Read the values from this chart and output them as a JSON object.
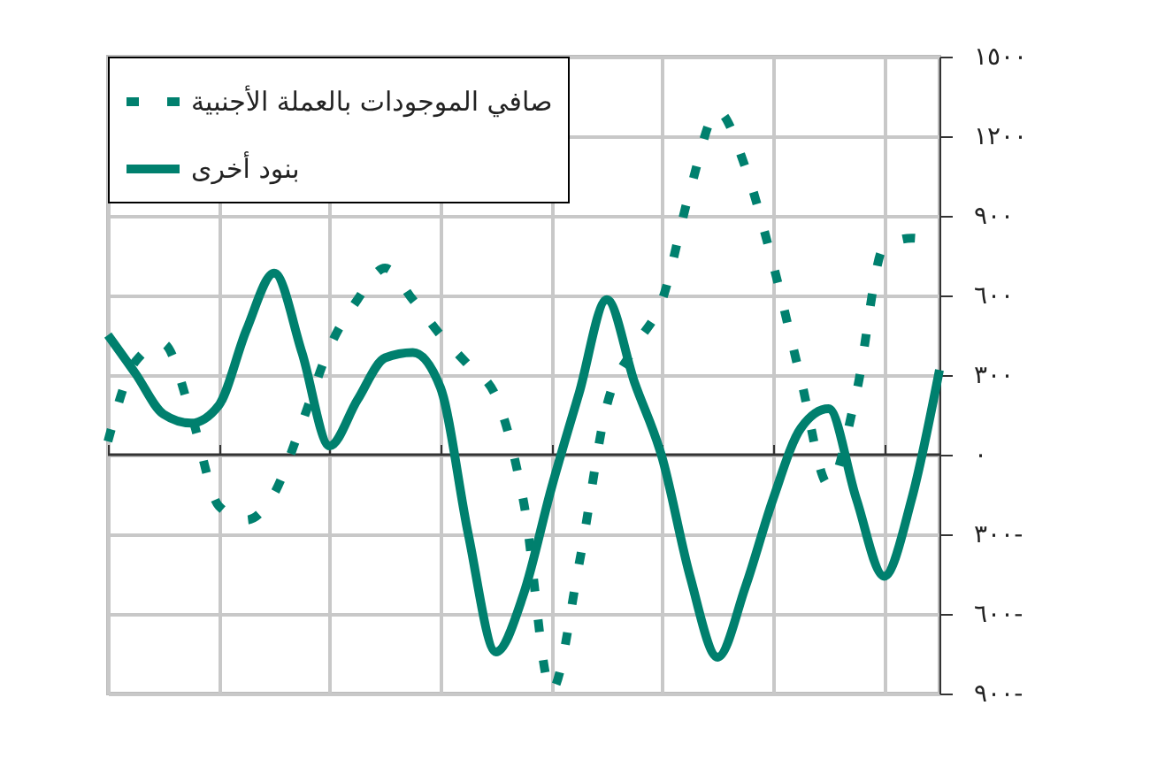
{
  "chart_data": {
    "type": "line",
    "categories": [
      null,
      null,
      null,
      null,
      null,
      null,
      null,
      null,
      null,
      null,
      null,
      null,
      null,
      null,
      null,
      null,
      null,
      null,
      null,
      null,
      null,
      null,
      null,
      null,
      null,
      null,
      null,
      null,
      null,
      null,
      null
    ],
    "series": [
      {
        "name": "صافي الموجودات بالعملة الأجنبية",
        "color": "#00806e",
        "line_style": "dashed",
        "values": [
          50,
          352,
          418,
          153,
          -193,
          -246,
          -146,
          119,
          405,
          584,
          703,
          584,
          451,
          338,
          219,
          -179,
          -889,
          -411,
          186,
          405,
          584,
          995,
          1294,
          1082,
          717,
          285,
          -113,
          232,
          783,
          816,
          796
        ]
      },
      {
        "name": "بنود أخرى",
        "color": "#00806e",
        "line_style": "solid",
        "values": [
          451,
          305,
          153,
          119,
          186,
          471,
          684,
          385,
          33,
          206,
          365,
          385,
          252,
          -299,
          -743,
          -524,
          -126,
          232,
          584,
          272,
          -13,
          -458,
          -763,
          -498,
          -166,
          100,
          173,
          -166,
          -458,
          -166,
          319
        ]
      }
    ],
    "ylim": [
      -900,
      1500
    ],
    "yticks": [
      {
        "value": -900,
        "label": "٩٠٠-"
      },
      {
        "value": -600,
        "label": "٦٠٠-"
      },
      {
        "value": -300,
        "label": "٣٠٠-"
      },
      {
        "value": 0,
        "label": "٠"
      },
      {
        "value": 300,
        "label": "٣٠٠"
      },
      {
        "value": 600,
        "label": "٦٠٠"
      },
      {
        "value": 900,
        "label": "٩٠٠"
      },
      {
        "value": 1200,
        "label": "١٢٠٠"
      },
      {
        "value": 1500,
        "label": "١٥٠٠"
      }
    ],
    "grid": true,
    "legend": "top left",
    "tick_labels": "y"
  }
}
